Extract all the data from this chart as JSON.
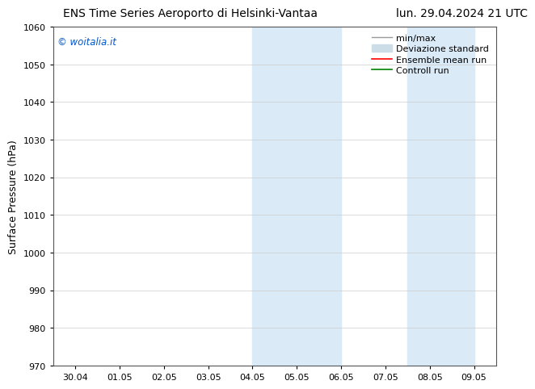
{
  "title_left": "ENS Time Series Aeroporto di Helsinki-Vantaa",
  "title_right": "lun. 29.04.2024 21 UTC",
  "ylabel": "Surface Pressure (hPa)",
  "ylim": [
    970,
    1060
  ],
  "yticks": [
    970,
    980,
    990,
    1000,
    1010,
    1020,
    1030,
    1040,
    1050,
    1060
  ],
  "xtick_labels": [
    "30.04",
    "01.05",
    "02.05",
    "03.05",
    "04.05",
    "05.05",
    "06.05",
    "07.05",
    "08.05",
    "09.05"
  ],
  "xtick_positions": [
    0,
    1,
    2,
    3,
    4,
    5,
    6,
    7,
    8,
    9
  ],
  "shaded_regions": [
    {
      "xmin": 4.0,
      "xmax": 5.0,
      "color": "#daeaf7"
    },
    {
      "xmin": 5.0,
      "xmax": 6.0,
      "color": "#daeaf7"
    },
    {
      "xmin": 7.5,
      "xmax": 8.0,
      "color": "#daeaf7"
    },
    {
      "xmin": 8.0,
      "xmax": 9.0,
      "color": "#daeaf7"
    }
  ],
  "watermark_text": "© woitalia.it",
  "watermark_color": "#0055cc",
  "legend_entries": [
    {
      "label": "min/max",
      "color": "#999999",
      "lw": 1.0,
      "style": "solid"
    },
    {
      "label": "Deviazione standard",
      "color": "#ccdde8",
      "lw": 8,
      "style": "solid"
    },
    {
      "label": "Ensemble mean run",
      "color": "red",
      "lw": 1.2,
      "style": "solid"
    },
    {
      "label": "Controll run",
      "color": "green",
      "lw": 1.2,
      "style": "solid"
    }
  ],
  "bg_color": "#ffffff",
  "plot_bg_color": "#ffffff",
  "title_fontsize": 10,
  "tick_fontsize": 8,
  "ylabel_fontsize": 9,
  "legend_fontsize": 8
}
